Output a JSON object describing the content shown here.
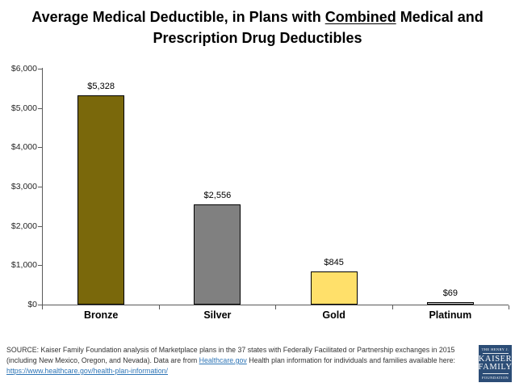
{
  "title": {
    "part1": "Average Medical Deductible, in Plans with ",
    "underlined": "Combined",
    "part2": " Medical and",
    "line2": "Prescription Drug Deductibles"
  },
  "chart_data": {
    "type": "bar",
    "categories": [
      "Bronze",
      "Silver",
      "Gold",
      "Platinum"
    ],
    "values": [
      5328,
      2556,
      845,
      69
    ],
    "value_labels": [
      "$5,328",
      "$2,556",
      "$845",
      "$69"
    ],
    "bar_colors": [
      "#7A680B",
      "#808080",
      "#FFE06A",
      "#D9D9D9"
    ],
    "bar_border_color": "#000000",
    "title": "Average Medical Deductible, in Plans with Combined Medical and Prescription Drug Deductibles",
    "xlabel": "",
    "ylabel": "",
    "ylim": [
      0,
      6000
    ],
    "y_ticks": [
      0,
      1000,
      2000,
      3000,
      4000,
      5000,
      6000
    ],
    "y_tick_labels": [
      "$0",
      "$1,000",
      "$2,000",
      "$3,000",
      "$4,000",
      "$5,000",
      "$6,000"
    ],
    "grid": false,
    "legend": false
  },
  "footer": {
    "line1": "SOURCE: Kaiser Family Foundation analysis of Marketplace plans in the 37 states with Federally Facilitated or Partnership exchanges in 2015",
    "line2_before": "(including New Mexico, Oregon, and Nevada). Data are from ",
    "line2_link": "Healthcare.gov",
    "line2_after": " Health plan information for individuals and families available here:",
    "line3_link": "https://www.healthcare.gov/health-plan-information/",
    "link_color": "#2E75B6"
  },
  "logo": {
    "line1": "THE HENRY J.",
    "line2": "KAISER",
    "line3": "FAMILY",
    "line4": "FOUNDATION",
    "bg_color": "#2C4D76"
  }
}
